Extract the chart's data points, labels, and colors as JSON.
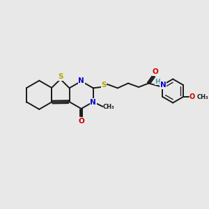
{
  "background_color": "#e8e8e8",
  "bond_color": "#1a1a1a",
  "atom_colors": {
    "S": "#aaaa00",
    "N": "#0000cc",
    "O": "#cc0000",
    "C": "#1a1a1a",
    "H": "#4a9999"
  }
}
